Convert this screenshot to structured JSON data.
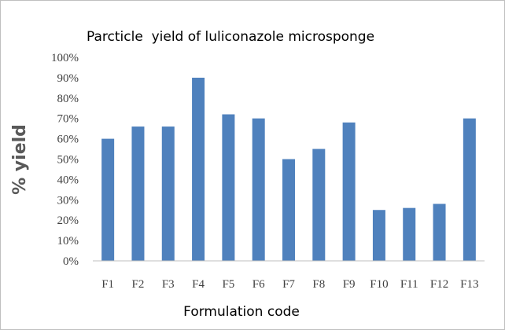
{
  "chart_data": {
    "type": "bar",
    "title": "Parcticle  yield of luliconazole microsponge",
    "xlabel": "Formulation code",
    "ylabel": "% yield",
    "categories": [
      "F1",
      "F2",
      "F3",
      "F4",
      "F5",
      "F6",
      "F7",
      "F8",
      "F9",
      "F10",
      "F11",
      "F12",
      "F13"
    ],
    "values": [
      60,
      66,
      66,
      90,
      72,
      70,
      50,
      55,
      68,
      25,
      26,
      28,
      70
    ],
    "ylim": [
      0,
      100
    ],
    "ytick_labels": [
      "0%",
      "10%",
      "20%",
      "30%",
      "40%",
      "50%",
      "60%",
      "70%",
      "80%",
      "90%",
      "100%"
    ],
    "bar_color": "#4f81bd",
    "grid": false,
    "legend": "none"
  }
}
